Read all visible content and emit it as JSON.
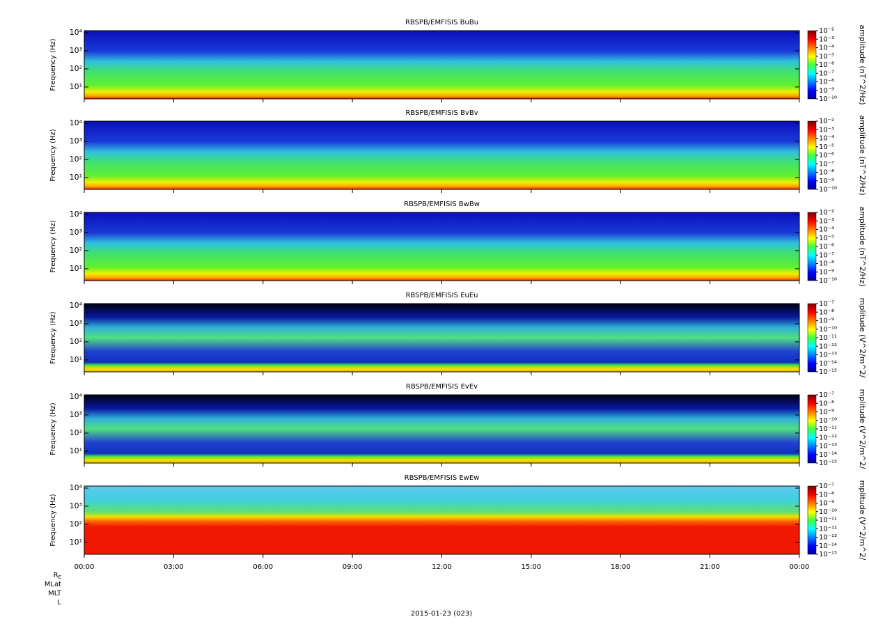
{
  "chart_data": [
    {
      "type": "spectrogram",
      "title": "RBSPB/EMFISIS  BuBu",
      "ylabel": "Frequency (Hz)",
      "log_y": true,
      "ylim": [
        2.2,
        13000
      ],
      "yticks": [
        {
          "value": 10,
          "label": "10¹"
        },
        {
          "value": 100,
          "label": "10²"
        },
        {
          "value": 1000,
          "label": "10³"
        },
        {
          "value": 10000,
          "label": "10⁴"
        }
      ],
      "colorbar_label": "amplitude (nT^2/Hz)",
      "zlim": [
        1e-10,
        0.01
      ],
      "zticks": [
        {
          "value": 0.01,
          "label": "10⁻²"
        },
        {
          "value": 0.001,
          "label": "10⁻³"
        },
        {
          "value": 0.0001,
          "label": "10⁻⁴"
        },
        {
          "value": 1e-05,
          "label": "10⁻⁵"
        },
        {
          "value": 1e-06,
          "label": "10⁻⁶"
        },
        {
          "value": 1e-07,
          "label": "10⁻⁷"
        },
        {
          "value": 1e-08,
          "label": "10⁻⁸"
        },
        {
          "value": 1e-09,
          "label": "10⁻⁹"
        },
        {
          "value": 1e-10,
          "label": "10⁻¹⁰"
        }
      ]
    },
    {
      "type": "spectrogram",
      "title": "RBSPB/EMFISIS  BvBv",
      "ylabel": "Frequency (Hz)",
      "log_y": true,
      "ylim": [
        2.2,
        13000
      ],
      "yticks": [
        {
          "value": 10,
          "label": "10¹"
        },
        {
          "value": 100,
          "label": "10²"
        },
        {
          "value": 1000,
          "label": "10³"
        },
        {
          "value": 10000,
          "label": "10⁴"
        }
      ],
      "colorbar_label": "amplitude (nT^2/Hz)",
      "zlim": [
        1e-10,
        0.01
      ],
      "zticks": [
        {
          "value": 0.01,
          "label": "10⁻²"
        },
        {
          "value": 0.001,
          "label": "10⁻³"
        },
        {
          "value": 0.0001,
          "label": "10⁻⁴"
        },
        {
          "value": 1e-05,
          "label": "10⁻⁵"
        },
        {
          "value": 1e-06,
          "label": "10⁻⁶"
        },
        {
          "value": 1e-07,
          "label": "10⁻⁷"
        },
        {
          "value": 1e-08,
          "label": "10⁻⁸"
        },
        {
          "value": 1e-09,
          "label": "10⁻⁹"
        },
        {
          "value": 1e-10,
          "label": "10⁻¹⁰"
        }
      ]
    },
    {
      "type": "spectrogram",
      "title": "RBSPB/EMFISIS  BwBw",
      "ylabel": "Frequency (Hz)",
      "log_y": true,
      "ylim": [
        2.2,
        13000
      ],
      "yticks": [
        {
          "value": 10,
          "label": "10¹"
        },
        {
          "value": 100,
          "label": "10²"
        },
        {
          "value": 1000,
          "label": "10³"
        },
        {
          "value": 10000,
          "label": "10⁴"
        }
      ],
      "colorbar_label": "amplitude (nT^2/Hz)",
      "zlim": [
        1e-10,
        0.01
      ],
      "zticks": [
        {
          "value": 0.01,
          "label": "10⁻²"
        },
        {
          "value": 0.001,
          "label": "10⁻³"
        },
        {
          "value": 0.0001,
          "label": "10⁻⁴"
        },
        {
          "value": 1e-05,
          "label": "10⁻⁵"
        },
        {
          "value": 1e-06,
          "label": "10⁻⁶"
        },
        {
          "value": 1e-07,
          "label": "10⁻⁷"
        },
        {
          "value": 1e-08,
          "label": "10⁻⁸"
        },
        {
          "value": 1e-09,
          "label": "10⁻⁹"
        },
        {
          "value": 1e-10,
          "label": "10⁻¹⁰"
        }
      ]
    },
    {
      "type": "spectrogram",
      "title": "RBSPB/EMFISIS  EuEu",
      "ylabel": "Frequency (Hz)",
      "log_y": true,
      "ylim": [
        2.2,
        13000
      ],
      "yticks": [
        {
          "value": 10,
          "label": "10¹"
        },
        {
          "value": 100,
          "label": "10²"
        },
        {
          "value": 1000,
          "label": "10³"
        },
        {
          "value": 10000,
          "label": "10⁴"
        }
      ],
      "colorbar_label": "mplitude (V^2/m^2/",
      "zlim": [
        1e-15,
        1e-07
      ],
      "zticks": [
        {
          "value": 1e-07,
          "label": "10⁻⁷"
        },
        {
          "value": 1e-08,
          "label": "10⁻⁸"
        },
        {
          "value": 1e-09,
          "label": "10⁻⁹"
        },
        {
          "value": 1e-10,
          "label": "10⁻¹⁰"
        },
        {
          "value": 1e-11,
          "label": "10⁻¹¹"
        },
        {
          "value": 1e-12,
          "label": "10⁻¹²"
        },
        {
          "value": 1e-13,
          "label": "10⁻¹³"
        },
        {
          "value": 1e-14,
          "label": "10⁻¹⁴"
        },
        {
          "value": 1e-15,
          "label": "10⁻¹⁵"
        }
      ]
    },
    {
      "type": "spectrogram",
      "title": "RBSPB/EMFISIS  EvEv",
      "ylabel": "Frequency (Hz)",
      "log_y": true,
      "ylim": [
        2.2,
        13000
      ],
      "yticks": [
        {
          "value": 10,
          "label": "10¹"
        },
        {
          "value": 100,
          "label": "10²"
        },
        {
          "value": 1000,
          "label": "10³"
        },
        {
          "value": 10000,
          "label": "10⁴"
        }
      ],
      "colorbar_label": "mplitude (V^2/m^2/",
      "zlim": [
        1e-15,
        1e-07
      ],
      "zticks": [
        {
          "value": 1e-07,
          "label": "10⁻⁷"
        },
        {
          "value": 1e-08,
          "label": "10⁻⁸"
        },
        {
          "value": 1e-09,
          "label": "10⁻⁹"
        },
        {
          "value": 1e-10,
          "label": "10⁻¹⁰"
        },
        {
          "value": 1e-11,
          "label": "10⁻¹¹"
        },
        {
          "value": 1e-12,
          "label": "10⁻¹²"
        },
        {
          "value": 1e-13,
          "label": "10⁻¹³"
        },
        {
          "value": 1e-14,
          "label": "10⁻¹⁴"
        },
        {
          "value": 1e-15,
          "label": "10⁻¹⁵"
        }
      ]
    },
    {
      "type": "spectrogram",
      "title": "RBSPB/EMFISIS  EwEw",
      "ylabel": "Frequency (Hz)",
      "log_y": true,
      "ylim": [
        2.2,
        13000
      ],
      "yticks": [
        {
          "value": 10,
          "label": "10¹"
        },
        {
          "value": 100,
          "label": "10²"
        },
        {
          "value": 1000,
          "label": "10³"
        },
        {
          "value": 10000,
          "label": "10⁴"
        }
      ],
      "colorbar_label": "mplitude (V^2/m^2/",
      "zlim": [
        1e-15,
        1e-07
      ],
      "zticks": [
        {
          "value": 1e-07,
          "label": "10⁻⁷"
        },
        {
          "value": 1e-08,
          "label": "10⁻⁸"
        },
        {
          "value": 1e-09,
          "label": "10⁻⁹"
        },
        {
          "value": 1e-10,
          "label": "10⁻¹⁰"
        },
        {
          "value": 1e-11,
          "label": "10⁻¹¹"
        },
        {
          "value": 1e-12,
          "label": "10⁻¹²"
        },
        {
          "value": 1e-13,
          "label": "10⁻¹³"
        },
        {
          "value": 1e-14,
          "label": "10⁻¹⁴"
        },
        {
          "value": 1e-15,
          "label": "10⁻¹⁵"
        }
      ]
    }
  ],
  "x_axis": {
    "xlim": [
      0,
      24
    ],
    "xticks": [
      {
        "value": 0,
        "label": "00:00"
      },
      {
        "value": 3,
        "label": "03:00"
      },
      {
        "value": 6,
        "label": "06:00"
      },
      {
        "value": 9,
        "label": "09:00"
      },
      {
        "value": 12,
        "label": "12:00"
      },
      {
        "value": 15,
        "label": "15:00"
      },
      {
        "value": 18,
        "label": "18:00"
      },
      {
        "value": 21,
        "label": "21:00"
      },
      {
        "value": 24,
        "label": "00:00"
      }
    ]
  },
  "footer": {
    "rows": [
      {
        "main": "R",
        "sub": "E"
      },
      {
        "main": "MLat"
      },
      {
        "main": "MLT"
      },
      {
        "main": "L"
      }
    ],
    "date": "2015-01-23 (023)"
  }
}
